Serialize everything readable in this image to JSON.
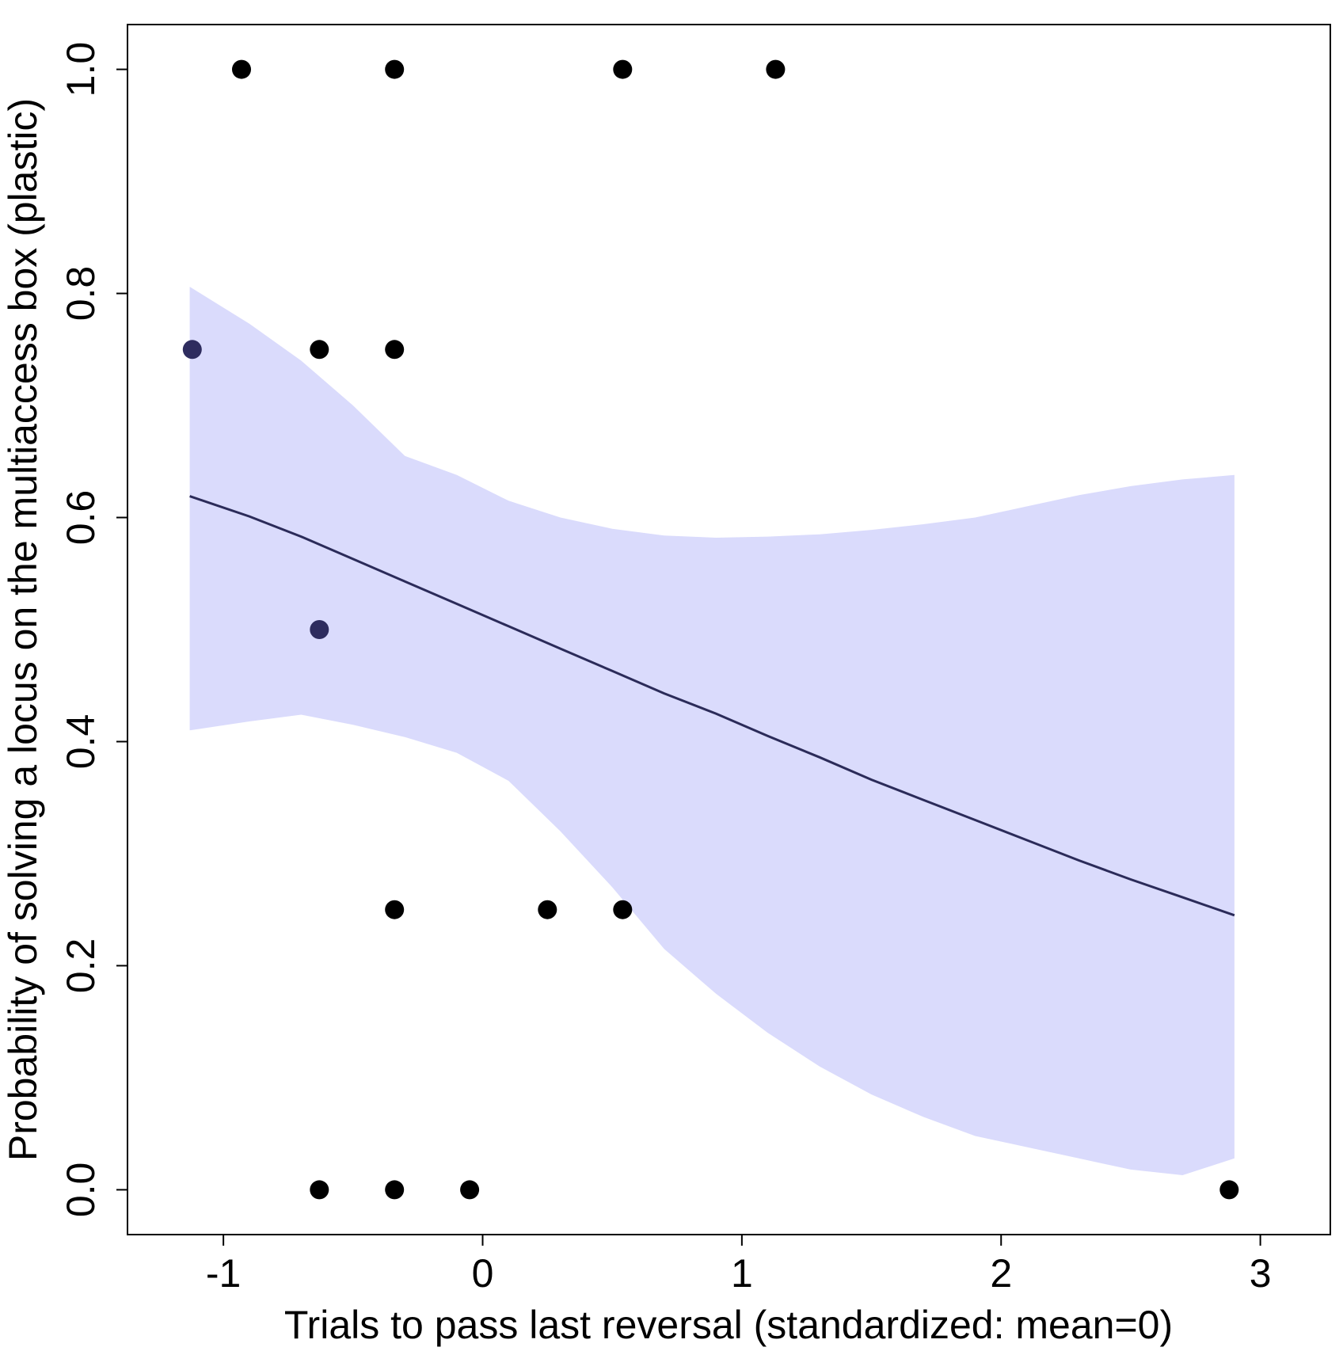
{
  "chart_data": {
    "type": "scatter",
    "xlabel": "Trials to pass last reversal (standardized: mean=0)",
    "ylabel": "Probability of solving a locus on the multiaccess box (plastic)",
    "xlim": [
      -1.37,
      3.27
    ],
    "ylim": [
      -0.04,
      1.04
    ],
    "x_ticks": [
      -1,
      0,
      1,
      2,
      3
    ],
    "y_ticks": [
      0.0,
      0.2,
      0.4,
      0.6,
      0.8,
      1.0
    ],
    "x_tick_labels": [
      "-1",
      "0",
      "1",
      "2",
      "3"
    ],
    "y_tick_labels": [
      "0.0",
      "0.2",
      "0.4",
      "0.6",
      "0.8",
      "1.0"
    ],
    "grid": false,
    "colors": {
      "points": "#000000",
      "line": "#2b2b59",
      "band": "#dadbfc",
      "overlap_points": "#2e2c5e"
    },
    "points": [
      {
        "x": -0.93,
        "y": 1.0
      },
      {
        "x": -0.34,
        "y": 1.0
      },
      {
        "x": 0.54,
        "y": 1.0
      },
      {
        "x": 1.13,
        "y": 1.0
      },
      {
        "x": -1.12,
        "y": 0.75
      },
      {
        "x": -0.63,
        "y": 0.75
      },
      {
        "x": -0.34,
        "y": 0.75
      },
      {
        "x": -0.63,
        "y": 0.5
      },
      {
        "x": -0.34,
        "y": 0.25
      },
      {
        "x": 0.25,
        "y": 0.25
      },
      {
        "x": 0.54,
        "y": 0.25
      },
      {
        "x": -0.63,
        "y": 0.0
      },
      {
        "x": -0.34,
        "y": 0.0
      },
      {
        "x": -0.05,
        "y": 0.0
      },
      {
        "x": 2.88,
        "y": 0.0
      }
    ],
    "fit": {
      "x": [
        -1.13,
        -0.9,
        -0.7,
        -0.5,
        -0.3,
        -0.1,
        0.1,
        0.3,
        0.5,
        0.7,
        0.9,
        1.1,
        1.3,
        1.5,
        1.7,
        1.9,
        2.1,
        2.3,
        2.5,
        2.7,
        2.9
      ],
      "y": [
        0.619,
        0.601,
        0.583,
        0.563,
        0.543,
        0.523,
        0.503,
        0.483,
        0.463,
        0.443,
        0.425,
        0.405,
        0.386,
        0.366,
        0.348,
        0.33,
        0.312,
        0.294,
        0.277,
        0.261,
        0.245
      ],
      "lower": [
        0.41,
        0.418,
        0.424,
        0.415,
        0.404,
        0.39,
        0.365,
        0.32,
        0.27,
        0.215,
        0.175,
        0.14,
        0.11,
        0.085,
        0.065,
        0.048,
        0.038,
        0.028,
        0.018,
        0.013,
        0.028
      ],
      "upper": [
        0.806,
        0.773,
        0.74,
        0.7,
        0.655,
        0.638,
        0.615,
        0.6,
        0.59,
        0.584,
        0.582,
        0.583,
        0.585,
        0.589,
        0.594,
        0.6,
        0.61,
        0.62,
        0.628,
        0.634,
        0.638
      ]
    }
  }
}
